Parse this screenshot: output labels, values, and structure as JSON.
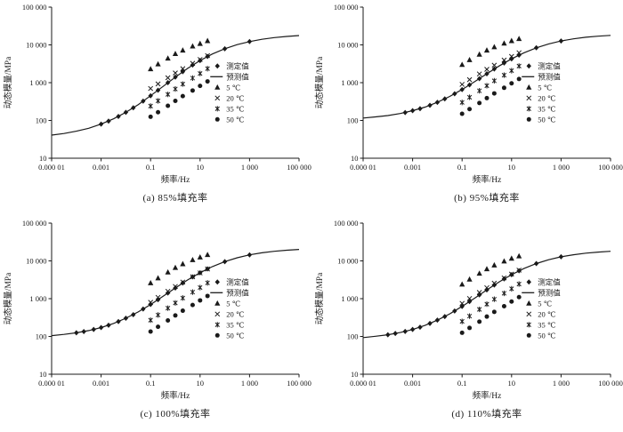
{
  "figure": {
    "background": "#ffffff",
    "ink_color": "#1a1a1a"
  },
  "chart_data": [
    {
      "type": "line+scatter",
      "caption": "(a) 85%填充率",
      "xlabel": "频率/Hz",
      "ylabel": "动态模量/MPa",
      "x_scale": "log",
      "y_scale": "log",
      "xlim_log": [
        -5,
        5
      ],
      "ylim_log": [
        1,
        5
      ],
      "x_tick_values": [
        -5,
        -3,
        -1,
        1,
        3,
        5
      ],
      "x_tick_labels": [
        "0.000 01",
        "0.001",
        "0.1",
        "10",
        "1 000",
        "100 000"
      ],
      "y_tick_values": [
        1,
        2,
        3,
        4,
        5
      ],
      "y_tick_labels": [
        "10",
        "100",
        "1 000",
        "10 000",
        "100 000"
      ],
      "legend": [
        {
          "marker": "diamond",
          "label": "测定值"
        },
        {
          "marker": "line",
          "label": "预测值"
        },
        {
          "marker": "triangle",
          "label": "5 ℃"
        },
        {
          "marker": "x",
          "label": "20 ℃"
        },
        {
          "marker": "asterisk",
          "label": "35 ℃"
        },
        {
          "marker": "circle",
          "label": "50 ℃"
        }
      ],
      "predicted_curve": {
        "name": "预测值",
        "logf": [
          -5,
          -4.5,
          -4,
          -3.5,
          -3,
          -2.5,
          -2,
          -1.5,
          -1,
          -0.5,
          0,
          0.5,
          1,
          1.5,
          2,
          2.5,
          3,
          3.5,
          4,
          4.5,
          5
        ],
        "E": [
          41,
          45,
          52,
          62,
          80,
          110,
          164,
          263,
          450,
          794,
          1400,
          2390,
          3850,
          5740,
          7910,
          10140,
          12250,
          14060,
          15560,
          16710,
          17620
        ]
      },
      "series": [
        {
          "id": "measured",
          "name": "测定值",
          "marker": "diamond",
          "f": [
            0.001,
            0.002,
            0.005,
            0.01,
            0.02,
            0.05,
            0.1,
            0.2,
            0.5,
            1,
            2,
            5,
            10,
            20,
            100,
            1000
          ],
          "E": [
            80,
            96,
            128,
            164,
            216,
            324,
            450,
            630,
            1000,
            1400,
            1950,
            2930,
            3850,
            4940,
            7910,
            12250
          ]
        },
        {
          "id": "t5",
          "name": "5 ℃",
          "marker": "triangle",
          "f": [
            0.1,
            0.2,
            0.5,
            1,
            2,
            5,
            10,
            20
          ],
          "E": [
            2300,
            3100,
            4400,
            5800,
            7200,
            9200,
            10800,
            12800
          ]
        },
        {
          "id": "t20",
          "name": "20 ℃",
          "marker": "x",
          "f": [
            0.1,
            0.2,
            0.5,
            1,
            2,
            5,
            10,
            20
          ],
          "E": [
            700,
            930,
            1350,
            1800,
            2350,
            3250,
            4100,
            5200
          ]
        },
        {
          "id": "t35",
          "name": "35 ℃",
          "marker": "asterisk",
          "f": [
            0.1,
            0.2,
            0.5,
            1,
            2,
            5,
            10,
            20
          ],
          "E": [
            240,
            330,
            490,
            680,
            920,
            1320,
            1750,
            2350
          ]
        },
        {
          "id": "t50",
          "name": "50 ℃",
          "marker": "circle",
          "f": [
            0.1,
            0.2,
            0.5,
            1,
            2,
            5,
            10,
            20
          ],
          "E": [
            125,
            165,
            245,
            330,
            440,
            620,
            820,
            1080
          ]
        }
      ]
    },
    {
      "type": "line+scatter",
      "caption": "(b) 95%填充率",
      "xlabel": "频率/Hz",
      "ylabel": "动态模量/MPa",
      "x_scale": "log",
      "y_scale": "log",
      "xlim_log": [
        -5,
        5
      ],
      "ylim_log": [
        1,
        5
      ],
      "x_tick_values": [
        -5,
        -3,
        -1,
        1,
        3,
        5
      ],
      "x_tick_labels": [
        "0.000 01",
        "0.001",
        "0.1",
        "10",
        "1 000",
        "100 000"
      ],
      "y_tick_values": [
        1,
        2,
        3,
        4,
        5
      ],
      "y_tick_labels": [
        "10",
        "100",
        "1 000",
        "10 000",
        "100 000"
      ],
      "legend": [
        {
          "marker": "diamond",
          "label": "测定值"
        },
        {
          "marker": "line",
          "label": "预测值"
        },
        {
          "marker": "triangle",
          "label": "5 ℃"
        },
        {
          "marker": "x",
          "label": "20 ℃"
        },
        {
          "marker": "asterisk",
          "label": "35 ℃"
        },
        {
          "marker": "circle",
          "label": "50 ℃"
        }
      ],
      "predicted_curve": {
        "name": "预测值",
        "logf": [
          -5,
          -4.5,
          -4,
          -3.5,
          -3,
          -2.5,
          -2,
          -1.5,
          -1,
          -0.5,
          0,
          0.5,
          1,
          1.5,
          2,
          2.5,
          3,
          3.5,
          4,
          4.5,
          5
        ],
        "E": [
          116,
          124,
          135,
          153,
          181,
          226,
          302,
          432,
          659,
          1054,
          1720,
          2770,
          4270,
          6180,
          8380,
          10620,
          12680,
          14480,
          15920,
          17030,
          17870
        ]
      },
      "series": [
        {
          "id": "measured",
          "name": "测定值",
          "marker": "diamond",
          "f": [
            0.0005,
            0.001,
            0.002,
            0.005,
            0.01,
            0.02,
            0.05,
            0.1,
            0.2,
            0.5,
            1,
            2,
            5,
            10,
            20,
            100,
            1000
          ],
          "E": [
            162,
            181,
            205,
            252,
            302,
            371,
            508,
            659,
            871,
            1280,
            1720,
            2300,
            3310,
            4270,
            5380,
            8380,
            12680
          ]
        },
        {
          "id": "t5",
          "name": "5 ℃",
          "marker": "triangle",
          "f": [
            0.1,
            0.2,
            0.5,
            1,
            2,
            5,
            10,
            20
          ],
          "E": [
            3000,
            4000,
            5600,
            7200,
            8800,
            11000,
            12800,
            14500
          ]
        },
        {
          "id": "t20",
          "name": "20 ℃",
          "marker": "x",
          "f": [
            0.1,
            0.2,
            0.5,
            1,
            2,
            5,
            10,
            20
          ],
          "E": [
            900,
            1200,
            1700,
            2250,
            2900,
            3950,
            4950,
            6200
          ]
        },
        {
          "id": "t35",
          "name": "35 ℃",
          "marker": "asterisk",
          "f": [
            0.1,
            0.2,
            0.5,
            1,
            2,
            5,
            10,
            20
          ],
          "E": [
            300,
            410,
            610,
            830,
            1120,
            1580,
            2080,
            2750
          ]
        },
        {
          "id": "t50",
          "name": "50 ℃",
          "marker": "circle",
          "f": [
            0.1,
            0.2,
            0.5,
            1,
            2,
            5,
            10,
            20
          ],
          "E": [
            150,
            200,
            290,
            390,
            520,
            730,
            960,
            1250
          ]
        }
      ]
    },
    {
      "type": "line+scatter",
      "caption": "(c) 100%填充率",
      "xlabel": "频率/Hz",
      "ylabel": "动态模量/MPa",
      "x_scale": "log",
      "y_scale": "log",
      "xlim_log": [
        -5,
        5
      ],
      "ylim_log": [
        1,
        5
      ],
      "x_tick_values": [
        -5,
        -3,
        -1,
        1,
        3,
        5
      ],
      "x_tick_labels": [
        "0.000 01",
        "0.001",
        "0.1",
        "10",
        "1 000",
        "100 000"
      ],
      "y_tick_values": [
        1,
        2,
        3,
        4,
        5
      ],
      "y_tick_labels": [
        "10",
        "100",
        "1 000",
        "10 000",
        "100 000"
      ],
      "legend": [
        {
          "marker": "diamond",
          "label": "测定值"
        },
        {
          "marker": "line",
          "label": "预测值"
        },
        {
          "marker": "triangle",
          "label": "5 ℃"
        },
        {
          "marker": "x",
          "label": "20 ℃"
        },
        {
          "marker": "asterisk",
          "label": "35 ℃"
        },
        {
          "marker": "circle",
          "label": "50 ℃"
        }
      ],
      "predicted_curve": {
        "name": "预测值",
        "logf": [
          -5,
          -4.5,
          -4,
          -3.5,
          -3,
          -2.5,
          -2,
          -1.5,
          -1,
          -0.5,
          0,
          0.5,
          1,
          1.5,
          2,
          2.5,
          3,
          3.5,
          4,
          4.5,
          5
        ],
        "E": [
          105,
          113,
          125,
          143,
          172,
          220,
          303,
          446,
          701,
          1151,
          1918,
          3130,
          4860,
          7060,
          9560,
          12070,
          14420,
          16370,
          17980,
          19200,
          20140
        ]
      },
      "series": [
        {
          "id": "measured",
          "name": "测定值",
          "marker": "diamond",
          "f": [
            0.0001,
            0.0002,
            0.0005,
            0.001,
            0.002,
            0.005,
            0.01,
            0.02,
            0.05,
            0.1,
            0.2,
            0.5,
            1,
            2,
            5,
            10,
            20,
            100,
            1000
          ],
          "E": [
            125,
            135,
            153,
            172,
            198,
            248,
            303,
            378,
            531,
            701,
            940,
            1413,
            1918,
            2590,
            3760,
            4860,
            6140,
            9560,
            14420
          ]
        },
        {
          "id": "t5",
          "name": "5 ℃",
          "marker": "triangle",
          "f": [
            0.1,
            0.2,
            0.5,
            1,
            2,
            5,
            10,
            20
          ],
          "E": [
            2600,
            3500,
            5000,
            6600,
            8300,
            10600,
            12500,
            14500
          ]
        },
        {
          "id": "t20",
          "name": "20 ℃",
          "marker": "x",
          "f": [
            0.1,
            0.2,
            0.5,
            1,
            2,
            5,
            10,
            20
          ],
          "E": [
            800,
            1080,
            1570,
            2100,
            2750,
            3800,
            4800,
            6100
          ]
        },
        {
          "id": "t35",
          "name": "35 ℃",
          "marker": "asterisk",
          "f": [
            0.1,
            0.2,
            0.5,
            1,
            2,
            5,
            10,
            20
          ],
          "E": [
            270,
            370,
            560,
            770,
            1040,
            1490,
            1970,
            2620
          ]
        },
        {
          "id": "t50",
          "name": "50 ℃",
          "marker": "circle",
          "f": [
            0.1,
            0.2,
            0.5,
            1,
            2,
            5,
            10,
            20
          ],
          "E": [
            135,
            180,
            265,
            360,
            480,
            680,
            900,
            1180
          ]
        }
      ]
    },
    {
      "type": "line+scatter",
      "caption": "(d) 110%填充率",
      "xlabel": "频率/Hz",
      "ylabel": "动态模量/MPa",
      "x_scale": "log",
      "y_scale": "log",
      "xlim_log": [
        -5,
        5
      ],
      "ylim_log": [
        1,
        5
      ],
      "x_tick_values": [
        -5,
        -3,
        -1,
        1,
        3,
        5
      ],
      "x_tick_labels": [
        "0.000 01",
        "0.001",
        "0.1",
        "10",
        "1 000",
        "100 000"
      ],
      "y_tick_values": [
        1,
        2,
        3,
        4,
        5
      ],
      "y_tick_labels": [
        "10",
        "100",
        "1 000",
        "10 000",
        "100 000"
      ],
      "legend": [
        {
          "marker": "diamond",
          "label": "测定值"
        },
        {
          "marker": "line",
          "label": "预测值"
        },
        {
          "marker": "triangle",
          "label": "5 ℃"
        },
        {
          "marker": "x",
          "label": "20 ℃"
        },
        {
          "marker": "asterisk",
          "label": "35 ℃"
        },
        {
          "marker": "circle",
          "label": "50 ℃"
        }
      ],
      "predicted_curve": {
        "name": "预测值",
        "logf": [
          -5,
          -4.5,
          -4,
          -3.5,
          -3,
          -2.5,
          -2,
          -1.5,
          -1,
          -0.5,
          0,
          0.5,
          1,
          1.5,
          2,
          2.5,
          3,
          3.5,
          4,
          4.5,
          5
        ],
        "E": [
          93,
          101,
          111,
          127,
          153,
          196,
          270,
          397,
          624,
          1024,
          1707,
          2785,
          4325,
          6282,
          8505,
          10740,
          12830,
          14570,
          16000,
          17090,
          17920
        ]
      },
      "series": [
        {
          "id": "measured",
          "name": "测定值",
          "marker": "diamond",
          "f": [
            0.0001,
            0.0002,
            0.0005,
            0.001,
            0.002,
            0.005,
            0.01,
            0.02,
            0.05,
            0.1,
            0.2,
            0.5,
            1,
            2,
            5,
            10,
            20,
            100,
            1000
          ],
          "E": [
            111,
            120,
            136,
            153,
            176,
            221,
            270,
            336,
            472,
            624,
            837,
            1258,
            1707,
            2303,
            3345,
            4325,
            5463,
            8505,
            12830
          ]
        },
        {
          "id": "t5",
          "name": "5 ℃",
          "marker": "triangle",
          "f": [
            0.1,
            0.2,
            0.5,
            1,
            2,
            5,
            10,
            20
          ],
          "E": [
            2400,
            3250,
            4650,
            6100,
            7700,
            9800,
            11600,
            13400
          ]
        },
        {
          "id": "t20",
          "name": "20 ℃",
          "marker": "x",
          "f": [
            0.1,
            0.2,
            0.5,
            1,
            2,
            5,
            10,
            20
          ],
          "E": [
            750,
            1010,
            1460,
            1950,
            2560,
            3540,
            4470,
            5680
          ]
        },
        {
          "id": "t35",
          "name": "35 ℃",
          "marker": "asterisk",
          "f": [
            0.1,
            0.2,
            0.5,
            1,
            2,
            5,
            10,
            20
          ],
          "E": [
            250,
            345,
            520,
            715,
            965,
            1385,
            1830,
            2440
          ]
        },
        {
          "id": "t50",
          "name": "50 ℃",
          "marker": "circle",
          "f": [
            0.1,
            0.2,
            0.5,
            1,
            2,
            5,
            10,
            20
          ],
          "E": [
            125,
            168,
            246,
            335,
            446,
            632,
            837,
            1098
          ]
        }
      ]
    }
  ]
}
